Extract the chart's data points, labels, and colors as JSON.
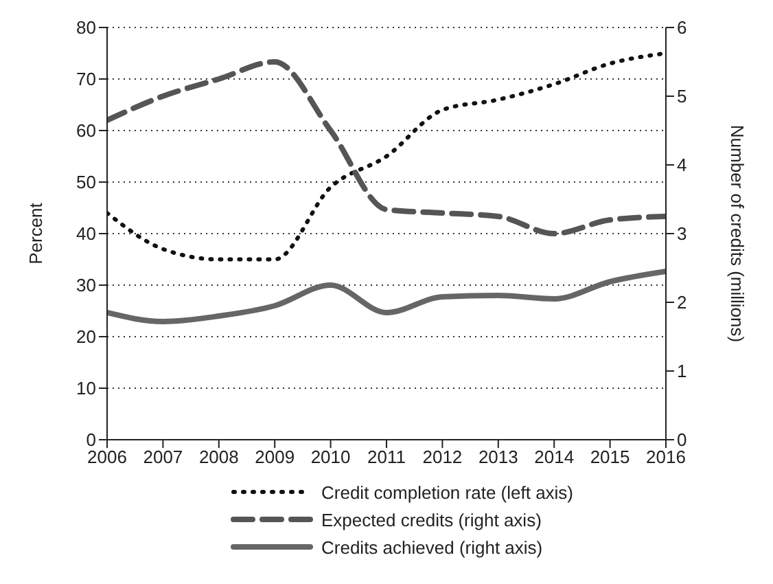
{
  "chart_data": {
    "type": "line",
    "ylabel": "Percent",
    "y2label": "Number of credits (millions)",
    "x": [
      2006,
      2007,
      2008,
      2009,
      2010,
      2011,
      2012,
      2013,
      2014,
      2015,
      2016
    ],
    "xlim": [
      2006,
      2016
    ],
    "xticks": [
      2006,
      2007,
      2008,
      2009,
      2010,
      2011,
      2012,
      2013,
      2014,
      2015,
      2016
    ],
    "ylim": [
      0,
      80
    ],
    "yticks": [
      0,
      10,
      20,
      30,
      40,
      50,
      60,
      70,
      80
    ],
    "y2lim": [
      0,
      6
    ],
    "y2ticks": [
      0,
      1,
      2,
      3,
      4,
      5,
      6
    ],
    "grid": "y",
    "legend": "bottom",
    "marker": "none",
    "series": [
      {
        "name": "Credit completion rate (left axis)",
        "color": "#111111",
        "line_style": "dotted",
        "values": [
          44,
          37,
          35,
          35,
          49,
          55,
          64,
          66,
          69,
          73,
          75
        ]
      },
      {
        "name": "Expected credits (right axis)",
        "color": "#555555",
        "line_style": "dashed",
        "axis": "y2",
        "values": [
          4.65,
          5.0,
          5.25,
          5.5,
          4.5,
          3.35,
          3.3,
          3.25,
          3.0,
          3.2,
          3.25
        ]
      },
      {
        "name": "Credits achieved (right axis)",
        "color": "#666666",
        "line_style": "solid",
        "axis": "y2",
        "values": [
          1.85,
          1.72,
          1.8,
          1.95,
          2.25,
          1.85,
          2.08,
          2.1,
          2.05,
          2.3,
          2.45
        ]
      }
    ]
  }
}
